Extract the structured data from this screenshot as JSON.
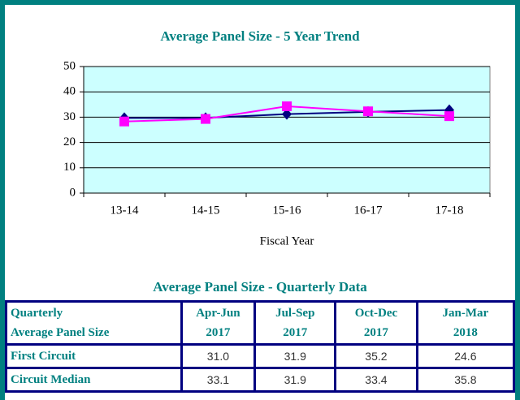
{
  "chart_data": {
    "type": "line",
    "title": "Average Panel Size - 5 Year Trend",
    "x_label": "Fiscal Year",
    "categories": [
      "13-14",
      "14-15",
      "15-16",
      "16-17",
      "17-18"
    ],
    "series": [
      {
        "color": "#000080",
        "marker": "diamond",
        "values": [
          29.7,
          29.7,
          31.2,
          32.1,
          32.8
        ]
      },
      {
        "color": "#ff00ff",
        "marker": "square",
        "values": [
          28.3,
          29.3,
          34.3,
          32.3,
          30.4
        ]
      }
    ],
    "ylim": [
      0,
      50
    ],
    "yticks": [
      0,
      10,
      20,
      30,
      40,
      50
    ],
    "grid": true
  },
  "table": {
    "title": "Average Panel Size - Quarterly Data",
    "headers": [
      [
        "Quarterly",
        "Average Panel Size"
      ],
      [
        "Apr-Jun",
        "2017"
      ],
      [
        "Jul-Sep",
        "2017"
      ],
      [
        "Oct-Dec",
        "2017"
      ],
      [
        "Jan-Mar",
        "2018"
      ]
    ],
    "rows": [
      [
        "First Circuit",
        "31.0",
        "31.9",
        "35.2",
        "24.6"
      ],
      [
        "Circuit Median",
        "33.1",
        "31.9",
        "33.4",
        "35.8"
      ]
    ]
  }
}
